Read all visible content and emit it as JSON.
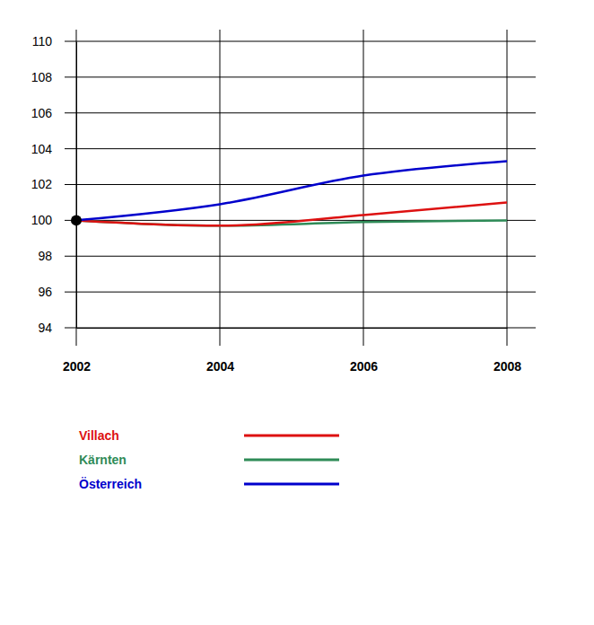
{
  "chart_data": {
    "type": "line",
    "x": [
      2002,
      2004,
      2006,
      2008
    ],
    "series": [
      {
        "name": "Villach",
        "color": "#dd1111",
        "values": [
          100,
          99.7,
          100.3,
          101.0
        ]
      },
      {
        "name": "Kärnten",
        "color": "#2e8b57",
        "values": [
          100,
          99.7,
          99.9,
          100.0
        ]
      },
      {
        "name": "Österreich",
        "color": "#0000cc",
        "values": [
          100,
          100.9,
          102.5,
          103.3
        ]
      }
    ],
    "xlim": [
      2002,
      2008
    ],
    "xticks": [
      2002,
      2004,
      2006,
      2008
    ],
    "ylim": [
      94,
      110
    ],
    "yticks": [
      94,
      96,
      98,
      100,
      102,
      104,
      106,
      108,
      110
    ],
    "grid": true,
    "legend": "bottom"
  }
}
